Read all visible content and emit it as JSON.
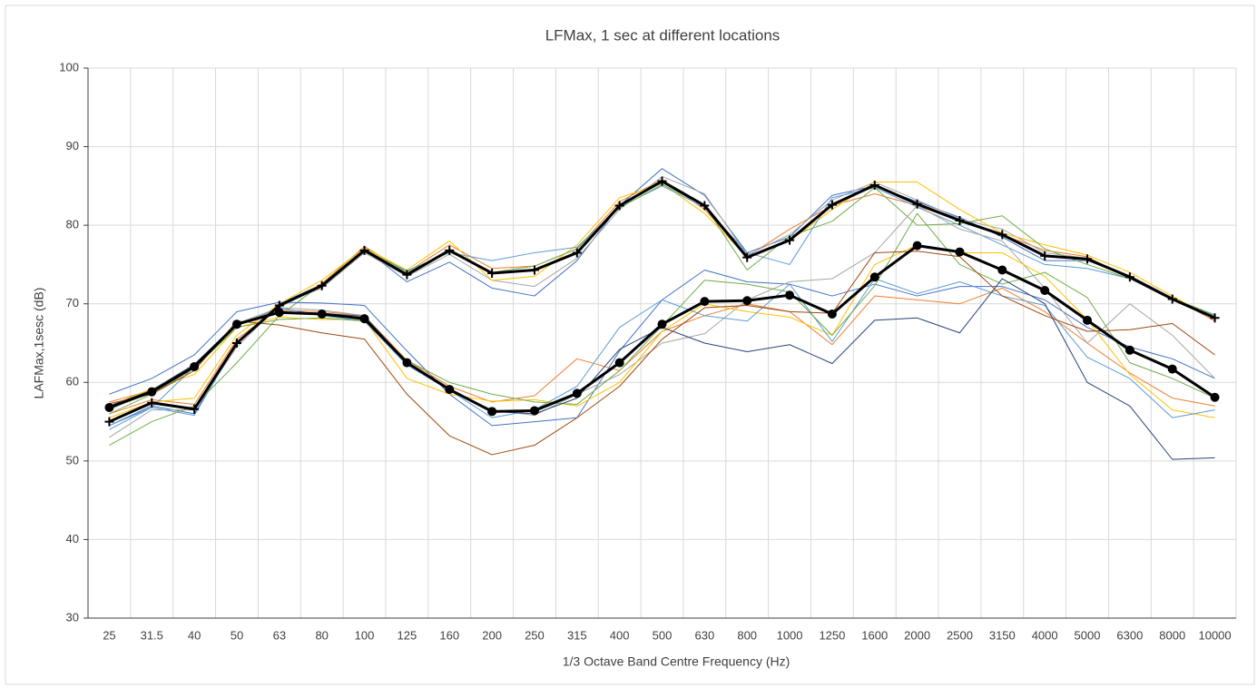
{
  "chart_data": {
    "type": "line",
    "title": "LFMax, 1 sec at different locations",
    "x_label": "1/3 Octave Band Centre Frequency (Hz)",
    "y_label": "LAFMax,1sesc (dB)",
    "categories": [
      "25",
      "31.5",
      "40",
      "50",
      "63",
      "80",
      "100",
      "125",
      "160",
      "200",
      "250",
      "315",
      "400",
      "500",
      "630",
      "800",
      "1000",
      "1250",
      "1600",
      "2000",
      "2500",
      "3150",
      "4000",
      "5000",
      "6300",
      "8000",
      "10000"
    ],
    "ylim": [
      30,
      100
    ],
    "yticks": [
      30,
      40,
      50,
      60,
      70,
      80,
      90,
      100
    ],
    "grid": true,
    "series": [
      {
        "color": "#4472c4",
        "width": 1,
        "values": [
          54.5,
          57,
          56,
          65,
          70,
          72.5,
          77,
          72.8,
          75.3,
          72,
          71,
          75.5,
          82.5,
          87.2,
          83.8,
          76.5,
          78.5,
          83.8,
          85,
          83,
          81,
          78.5,
          75.5,
          75.5,
          73.5,
          70.5,
          68.5
        ]
      },
      {
        "color": "#ed7d31",
        "width": 1,
        "values": [
          56,
          57.8,
          57.2,
          65.5,
          69.5,
          72.6,
          77.3,
          74,
          77.5,
          74.5,
          74.8,
          77,
          83,
          85.8,
          82,
          76,
          79.5,
          82.5,
          84,
          82.5,
          80.5,
          78.8,
          76.8,
          76,
          73.2,
          70.8,
          67.8
        ]
      },
      {
        "color": "#a5a5a5",
        "width": 1,
        "values": [
          53,
          56.5,
          56.5,
          64.5,
          69.8,
          72,
          76.5,
          73.5,
          76.3,
          73,
          72.2,
          75.8,
          82,
          86.2,
          84,
          76.2,
          78.8,
          83.2,
          85.5,
          83.2,
          80.8,
          79.5,
          76.5,
          75.8,
          73.6,
          70.8,
          68.3
        ]
      },
      {
        "color": "#ffc000",
        "width": 1,
        "values": [
          55.5,
          57.5,
          58,
          66,
          70,
          73,
          77.1,
          74.3,
          78,
          73,
          73.5,
          77.5,
          83.5,
          85.3,
          81.5,
          76,
          78,
          82,
          85.5,
          85.5,
          82,
          79,
          77.5,
          76.2,
          74,
          71,
          68
        ]
      },
      {
        "color": "#5b9bd5",
        "width": 1,
        "values": [
          54,
          56.8,
          55.8,
          65,
          69.6,
          72.2,
          76.8,
          74.2,
          76.5,
          75.5,
          76.5,
          77.2,
          82.3,
          85,
          82.3,
          76.5,
          75,
          83.5,
          84.8,
          82.3,
          80,
          77.5,
          75,
          74.5,
          73.2,
          70.5,
          68.5
        ]
      },
      {
        "color": "#70ad47",
        "width": 1,
        "values": [
          52,
          55,
          57,
          62.5,
          68.5,
          72.5,
          77,
          74,
          76.6,
          74,
          74.8,
          77,
          82.2,
          85.2,
          82.5,
          74.3,
          78.6,
          80.5,
          84.8,
          80,
          80.2,
          81.2,
          77,
          75,
          73.2,
          70.7,
          68.6
        ]
      },
      {
        "color": "#4472c4",
        "width": 1,
        "values": [
          58.5,
          60.5,
          63.5,
          69,
          70.2,
          70.1,
          69.8,
          64,
          58.5,
          54.5,
          55,
          55.5,
          64,
          70.5,
          74.3,
          72.8,
          72.5,
          71,
          72.5,
          71,
          72.2,
          72.2,
          70.5,
          67,
          64.5,
          63,
          60.5
        ]
      },
      {
        "color": "#ed7d31",
        "width": 1,
        "values": [
          57.5,
          59,
          62,
          67.5,
          69.2,
          69,
          68.5,
          62.8,
          59.5,
          57.5,
          58.3,
          63,
          61.5,
          66.5,
          68.5,
          70,
          69,
          64.8,
          71,
          70.5,
          70,
          72,
          69,
          65,
          61.2,
          58,
          57
        ]
      },
      {
        "color": "#a5a5a5",
        "width": 1,
        "values": [
          56.5,
          59,
          62.2,
          67.5,
          69.5,
          69.2,
          68.5,
          62.5,
          59,
          56.5,
          55.8,
          58.5,
          61,
          65,
          66.2,
          70.5,
          72.8,
          73.2,
          76.5,
          82.5,
          79.5,
          78,
          72,
          65,
          70,
          66,
          60.5
        ]
      },
      {
        "color": "#ffc000",
        "width": 1,
        "values": [
          57,
          59.2,
          61,
          67,
          68.3,
          68,
          68,
          60.5,
          58.5,
          57.6,
          57.8,
          57,
          60,
          66.5,
          70,
          69,
          68.3,
          66,
          75,
          77.5,
          76.5,
          76.5,
          73.5,
          68,
          61,
          56.5,
          55.5
        ]
      },
      {
        "color": "#5b9bd5",
        "width": 1,
        "values": [
          54.5,
          56.8,
          62,
          67.2,
          69.5,
          68.5,
          67.8,
          62.2,
          59,
          55.5,
          56.5,
          59.5,
          67,
          70.5,
          68.5,
          67.8,
          72.5,
          65.2,
          73.2,
          71.3,
          72.8,
          71,
          69.8,
          63.2,
          60.5,
          55.5,
          56.5
        ]
      },
      {
        "color": "#70ad47",
        "width": 1,
        "values": [
          56,
          58.5,
          61.8,
          67,
          68,
          68.2,
          67.8,
          62.8,
          60,
          58.5,
          57.5,
          57.2,
          61.5,
          67.2,
          73,
          72.5,
          71.5,
          66,
          72.3,
          81.5,
          75,
          72.5,
          74,
          70.8,
          62.5,
          60.5,
          58
        ]
      },
      {
        "color": "#264478",
        "width": 1,
        "values": [
          57,
          59,
          62.3,
          67.5,
          69,
          68.8,
          68.4,
          62.6,
          59.2,
          56.3,
          56,
          58,
          64.2,
          67,
          65,
          63.9,
          64.8,
          62.4,
          67.9,
          68.2,
          66.3,
          73.2,
          70,
          60,
          57,
          50.2,
          50.4
        ]
      },
      {
        "color": "#9e480e",
        "width": 1,
        "values": [
          57.3,
          58.5,
          61.5,
          67.8,
          67.3,
          66.3,
          65.5,
          58.5,
          53.2,
          50.8,
          52,
          55.5,
          59.5,
          65.5,
          69.5,
          69.8,
          69,
          68.8,
          76.5,
          76.7,
          76,
          71,
          68.5,
          66.5,
          66.7,
          67.5,
          63.5
        ]
      },
      {
        "color": "#000000",
        "width": 3,
        "marker": "plus",
        "values": [
          55,
          57.4,
          56.6,
          65,
          69.8,
          72.3,
          76.8,
          73.7,
          76.8,
          73.9,
          74.3,
          76.5,
          82.5,
          85.6,
          82.5,
          75.9,
          78.1,
          82.6,
          85.1,
          82.7,
          80.6,
          78.8,
          76.1,
          75.7,
          73.4,
          70.6,
          68.2
        ]
      },
      {
        "color": "#000000",
        "width": 3,
        "marker": "circle",
        "values": [
          56.8,
          58.8,
          62,
          67.4,
          68.9,
          68.7,
          68.1,
          62.5,
          59.1,
          56.3,
          56.4,
          58.6,
          62.5,
          67.4,
          70.3,
          70.4,
          71.1,
          68.7,
          73.4,
          77.4,
          76.6,
          74.3,
          71.7,
          67.9,
          64.1,
          61.7,
          58.1
        ]
      }
    ]
  }
}
